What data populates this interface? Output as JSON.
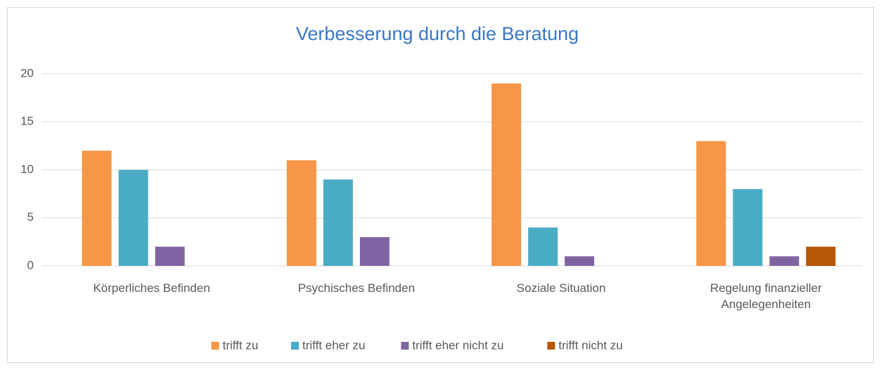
{
  "chart_data": {
    "type": "bar",
    "title": "Verbesserung durch die Beratung",
    "categories": [
      "Körperliches Befinden",
      "Psychisches Befinden",
      "Soziale Situation",
      "Regelung finanzieller Angelegenheiten"
    ],
    "series": [
      {
        "name": "trifft zu",
        "color": "#f79646",
        "values": [
          12,
          11,
          19,
          13
        ]
      },
      {
        "name": "trifft eher zu",
        "color": "#4bacc6",
        "values": [
          10,
          9,
          4,
          8
        ]
      },
      {
        "name": "trifft eher nicht zu",
        "color": "#8064a2",
        "values": [
          2,
          3,
          1,
          1
        ]
      },
      {
        "name": "trifft nicht zu",
        "color": "#b65708",
        "values": [
          0,
          0,
          0,
          2
        ]
      }
    ],
    "ylim": [
      0,
      20
    ],
    "yticks": [
      0,
      5,
      10,
      15,
      20
    ],
    "grid": true,
    "legend": "bottom"
  }
}
